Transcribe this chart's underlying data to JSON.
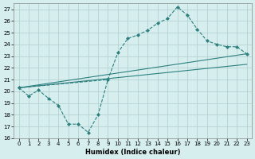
{
  "title": "",
  "xlabel": "Humidex (Indice chaleur)",
  "ylabel": "",
  "bg_color": "#d6eeee",
  "line_color": "#2d7f7f",
  "grid_color": "#b0cccc",
  "xlim": [
    -0.5,
    23.5
  ],
  "ylim": [
    16,
    27.5
  ],
  "yticks": [
    16,
    17,
    18,
    19,
    20,
    21,
    22,
    23,
    24,
    25,
    26,
    27
  ],
  "xticks": [
    0,
    1,
    2,
    3,
    4,
    5,
    6,
    7,
    8,
    9,
    10,
    11,
    12,
    13,
    14,
    15,
    16,
    17,
    18,
    19,
    20,
    21,
    22,
    23
  ],
  "line1_x": [
    0,
    1,
    2,
    3,
    4,
    5,
    6,
    7,
    8,
    9
  ],
  "line1_y": [
    20.3,
    19.6,
    20.1,
    19.4,
    18.8,
    17.2,
    17.2,
    16.5,
    18.0,
    21.0
  ],
  "line2_x": [
    0,
    9,
    10,
    11,
    12,
    13,
    14,
    15,
    16,
    17,
    18,
    19,
    20,
    21,
    22,
    23
  ],
  "line2_y": [
    20.3,
    21.0,
    23.3,
    24.5,
    24.8,
    25.2,
    25.8,
    26.2,
    27.2,
    26.5,
    25.3,
    24.3,
    24.0,
    23.8,
    23.8,
    23.2
  ],
  "line3_x": [
    0,
    23
  ],
  "line3_y": [
    20.3,
    23.2
  ],
  "line4_x": [
    0,
    23
  ],
  "line4_y": [
    20.3,
    22.3
  ]
}
